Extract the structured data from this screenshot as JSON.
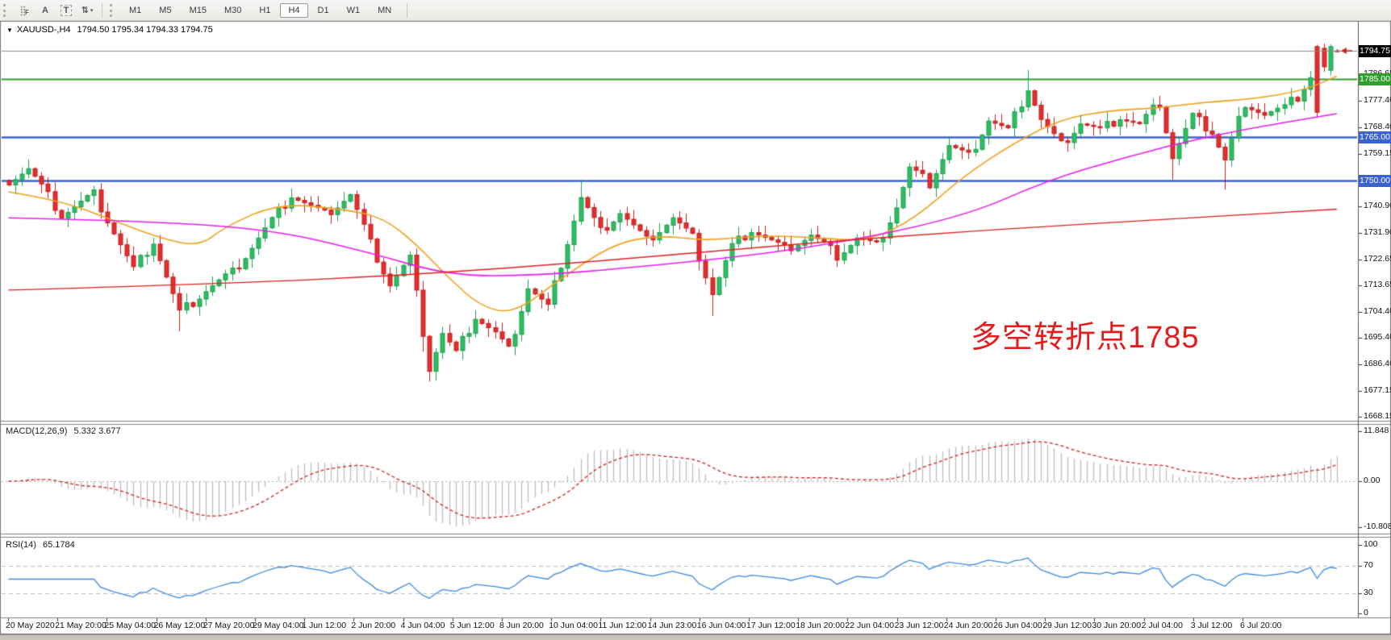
{
  "toolbar": {
    "tools": [
      {
        "name": "grid-f-icon",
        "glyph": "⣿",
        "sub": "F"
      },
      {
        "name": "font-a-icon",
        "glyph": "A",
        "sub": ""
      },
      {
        "name": "text-tool-icon",
        "glyph": "T",
        "sub": ""
      },
      {
        "name": "objects-arrows-icon",
        "glyph": "⇅",
        "sub": "▾"
      }
    ],
    "timeframes": [
      "M1",
      "M5",
      "M15",
      "M30",
      "H1",
      "H4",
      "D1",
      "W1",
      "MN"
    ],
    "active_timeframe": "H4"
  },
  "chart": {
    "symbol_period": "XAUUSD-,H4",
    "ohlc_line": "1794.50 1795.34 1794.33 1794.75",
    "macd_label": "MACD(12,26,9)",
    "macd_values": "5.332 3.677",
    "rsi_label": "RSI(14)",
    "rsi_value": "65.1784",
    "annotation": {
      "text": "多空转折点1785",
      "color": "#e51c1c"
    }
  },
  "chart_data": {
    "type": "candlestick",
    "symbol": "XAUUSD",
    "timeframe": "H4",
    "current_ohlc": {
      "open": 1794.5,
      "high": 1795.34,
      "low": 1794.33,
      "close": 1794.75
    },
    "candle_up_color": "#2ebd63",
    "candle_up_border": "#1ea04f",
    "candle_down_color": "#e22e2e",
    "candle_down_border": "#c32020",
    "horizontal_lines": [
      {
        "label": "1794.75",
        "price": 1794.75,
        "color": "#8a8a8a",
        "width": 1,
        "badge_bg": "#000000",
        "above_candles": true
      },
      {
        "label": "1785.00",
        "price": 1785.0,
        "color": "#2f9e2f",
        "width": 2,
        "badge_bg": "#2f9e2f",
        "above_candles": false
      },
      {
        "label": "1765.00",
        "price": 1765.0,
        "color": "#3a63cf",
        "width": 2.5,
        "badge_bg": "#3a63cf",
        "above_candles": false
      },
      {
        "label": "1750.00",
        "price": 1750.0,
        "color": "#3a63cf",
        "width": 2.5,
        "badge_bg": "#3a63cf",
        "above_candles": false
      }
    ],
    "price_axis_ticks": [
      {
        "label": "1786.65",
        "price": 1786.65
      },
      {
        "label": "1777.40",
        "price": 1777.4
      },
      {
        "label": "1768.40",
        "price": 1768.4
      },
      {
        "label": "1759.15",
        "price": 1759.15
      },
      {
        "label": "1740.90",
        "price": 1740.9
      },
      {
        "label": "1731.90",
        "price": 1731.9
      },
      {
        "label": "1722.65",
        "price": 1722.65
      },
      {
        "label": "1713.65",
        "price": 1713.65
      },
      {
        "label": "1704.40",
        "price": 1704.4
      },
      {
        "label": "1695.40",
        "price": 1695.4
      },
      {
        "label": "1686.40",
        "price": 1686.4
      },
      {
        "label": "1677.15",
        "price": 1677.15
      },
      {
        "label": "1668.15",
        "price": 1668.15
      }
    ],
    "price_anchors": [
      [
        0,
        1750
      ],
      [
        3,
        1754
      ],
      [
        8,
        1738
      ],
      [
        13,
        1745
      ],
      [
        19,
        1719
      ],
      [
        22,
        1729
      ],
      [
        26,
        1704
      ],
      [
        30,
        1712
      ],
      [
        34,
        1718
      ],
      [
        38,
        1730
      ],
      [
        43,
        1745
      ],
      [
        48,
        1738
      ],
      [
        52,
        1745
      ],
      [
        55,
        1728
      ],
      [
        58,
        1714
      ],
      [
        61,
        1723
      ],
      [
        64,
        1685
      ],
      [
        66,
        1697
      ],
      [
        68,
        1690
      ],
      [
        71,
        1703
      ],
      [
        74,
        1697
      ],
      [
        76,
        1691
      ],
      [
        79,
        1713
      ],
      [
        82,
        1706
      ],
      [
        87,
        1744
      ],
      [
        90,
        1732
      ],
      [
        93,
        1739
      ],
      [
        97,
        1729
      ],
      [
        101,
        1737
      ],
      [
        104,
        1730
      ],
      [
        107,
        1711
      ],
      [
        110,
        1727
      ],
      [
        113,
        1733
      ],
      [
        118,
        1726
      ],
      [
        122,
        1731
      ],
      [
        126,
        1724
      ],
      [
        129,
        1730
      ],
      [
        132,
        1727
      ],
      [
        135,
        1741
      ],
      [
        137,
        1754
      ],
      [
        140,
        1749
      ],
      [
        143,
        1762
      ],
      [
        146,
        1758
      ],
      [
        149,
        1771
      ],
      [
        152,
        1767
      ],
      [
        155,
        1782
      ],
      [
        157,
        1771
      ],
      [
        160,
        1762
      ],
      [
        163,
        1770
      ],
      [
        166,
        1767
      ],
      [
        169,
        1772
      ],
      [
        172,
        1769
      ],
      [
        175,
        1777
      ],
      [
        177,
        1758
      ],
      [
        180,
        1772
      ],
      [
        183,
        1767
      ],
      [
        185,
        1757
      ],
      [
        187,
        1771
      ],
      [
        189,
        1776
      ],
      [
        191,
        1773
      ],
      [
        194,
        1775
      ],
      [
        196,
        1779
      ],
      [
        198,
        1786
      ]
    ],
    "final_candles": [
      {
        "o": 1796.2,
        "h": 1796.8,
        "l": 1771.5,
        "c": 1773.5,
        "dir": "down"
      },
      {
        "o": 1795.6,
        "h": 1797.2,
        "l": 1787.5,
        "c": 1789.2,
        "dir": "down"
      },
      {
        "o": 1788.0,
        "h": 1797.0,
        "l": 1786.2,
        "c": 1796.2,
        "dir": "up"
      },
      {
        "o": 1794.5,
        "h": 1795.34,
        "l": 1794.33,
        "c": 1794.75,
        "dir": "down"
      }
    ],
    "wick_low_extras": {
      "26": 5,
      "63": 4,
      "64": 3,
      "107": 6,
      "177": 4,
      "185": 7
    },
    "wick_high_extras": {
      "87": 3,
      "155": 4
    },
    "moving_averages": [
      {
        "name": "ma-fast-orange",
        "color": "#f0a11e",
        "width": 1.6,
        "points": [
          [
            0,
            1746
          ],
          [
            8,
            1743
          ],
          [
            16,
            1736
          ],
          [
            23,
            1730
          ],
          [
            29,
            1727
          ],
          [
            33,
            1734
          ],
          [
            41,
            1742
          ],
          [
            51,
            1740
          ],
          [
            57,
            1737
          ],
          [
            62,
            1728
          ],
          [
            67,
            1716
          ],
          [
            72,
            1706
          ],
          [
            77,
            1704
          ],
          [
            84,
            1716
          ],
          [
            92,
            1728
          ],
          [
            99,
            1731
          ],
          [
            106,
            1729
          ],
          [
            115,
            1731
          ],
          [
            123,
            1730
          ],
          [
            131,
            1729
          ],
          [
            138,
            1737
          ],
          [
            145,
            1751
          ],
          [
            153,
            1763
          ],
          [
            160,
            1771
          ],
          [
            167,
            1774
          ],
          [
            175,
            1775
          ],
          [
            182,
            1777
          ],
          [
            189,
            1778
          ],
          [
            197,
            1781
          ],
          [
            202,
            1786
          ]
        ]
      },
      {
        "name": "ma-mid-magenta",
        "color": "#ea1eea",
        "width": 1.6,
        "points": [
          [
            0,
            1737
          ],
          [
            20,
            1736
          ],
          [
            40,
            1733
          ],
          [
            55,
            1725
          ],
          [
            67,
            1717
          ],
          [
            80,
            1717
          ],
          [
            96,
            1720
          ],
          [
            121,
            1726
          ],
          [
            145,
            1737
          ],
          [
            158,
            1750
          ],
          [
            170,
            1758
          ],
          [
            182,
            1765
          ],
          [
            194,
            1770
          ],
          [
            202,
            1773
          ]
        ]
      },
      {
        "name": "ma-slow-red",
        "color": "#e02020",
        "width": 1.4,
        "points": [
          [
            0,
            1712
          ],
          [
            30,
            1714
          ],
          [
            60,
            1717
          ],
          [
            90,
            1722
          ],
          [
            120,
            1728
          ],
          [
            150,
            1733
          ],
          [
            180,
            1737
          ],
          [
            202,
            1740
          ]
        ]
      }
    ],
    "macd": {
      "params": "12,26,9",
      "main": 5.332,
      "signal": 3.677,
      "axis": [
        {
          "label": "11.848",
          "value": 11.848
        },
        {
          "label": "0.00",
          "value": 0.0
        },
        {
          "label": "-10.808",
          "value": -10.808
        }
      ],
      "bar_color": "#bdbdbd",
      "signal_color": "#d42020"
    },
    "rsi": {
      "period": 14,
      "value": 65.1784,
      "axis": [
        {
          "label": "100",
          "value": 100
        },
        {
          "label": "70",
          "value": 70
        },
        {
          "label": "30",
          "value": 30
        },
        {
          "label": "0",
          "value": 0
        }
      ],
      "levels": [
        70,
        30
      ],
      "color": "#3b8be0"
    },
    "time_axis": [
      "20 May 2020",
      "21 May 20:00",
      "25 May 04:00",
      "26 May 12:00",
      "27 May 20:00",
      "29 May 04:00",
      "1 Jun 12:00",
      "2 Jun 20:00",
      "4 Jun 04:00",
      "5 Jun 12:00",
      "8 Jun 20:00",
      "10 Jun 04:00",
      "11 Jun 12:00",
      "14 Jun 23:00",
      "16 Jun 04:00",
      "17 Jun 12:00",
      "18 Jun 20:00",
      "22 Jun 04:00",
      "23 Jun 12:00",
      "24 Jun 20:00",
      "26 Jun 04:00",
      "29 Jun 12:00",
      "30 Jun 20:00",
      "2 Jul 04:00",
      "3 Jul 12:00",
      "6 Jul 20:00"
    ]
  }
}
